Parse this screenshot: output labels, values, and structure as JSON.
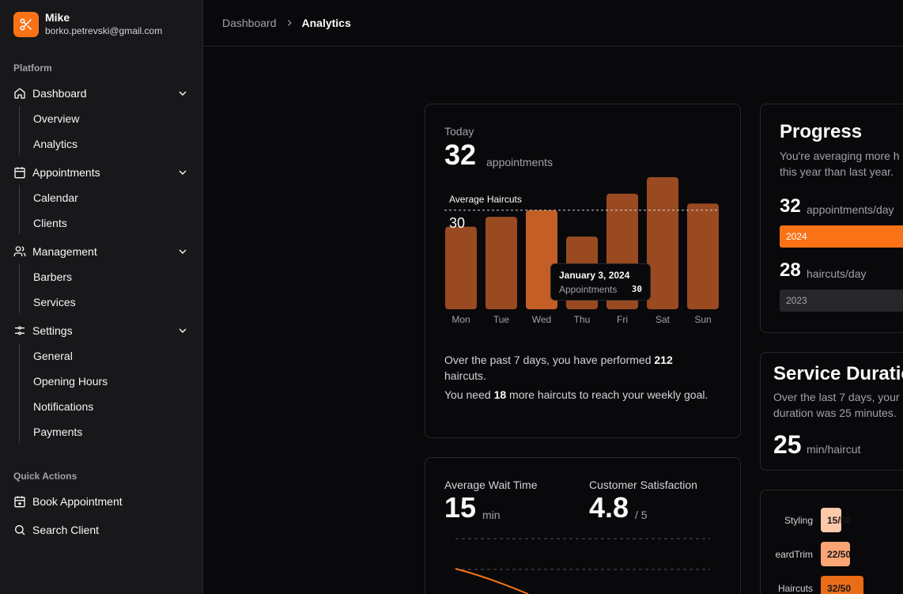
{
  "user": {
    "name": "Mike",
    "email": "borko.petrevski@gmail.com"
  },
  "sidebar": {
    "platform_label": "Platform",
    "dashboard": {
      "label": "Dashboard",
      "items": [
        "Overview",
        "Analytics"
      ]
    },
    "appointments": {
      "label": "Appointments",
      "items": [
        "Calendar",
        "Clients"
      ]
    },
    "management": {
      "label": "Management",
      "items": [
        "Barbers",
        "Services"
      ]
    },
    "settings": {
      "label": "Settings",
      "items": [
        "General",
        "Opening Hours",
        "Notifications",
        "Payments"
      ]
    },
    "quick_label": "Quick Actions",
    "quick": [
      "Book Appointment",
      "Search Client"
    ]
  },
  "breadcrumb": {
    "parent": "Dashboard",
    "current": "Analytics"
  },
  "today_card": {
    "label": "Today",
    "value": "32",
    "unit": "appointments",
    "reference_label": "Average Haircuts",
    "reference_value": "30",
    "summary_1_pre": "Over the past 7 days, you have performed ",
    "summary_1_num": "212",
    "summary_1_post": " haircuts.",
    "summary_2_pre": "You need ",
    "summary_2_num": "18",
    "summary_2_post": " more haircuts to reach your weekly goal.",
    "tooltip": {
      "date": "January 3, 2024",
      "label": "Appointments",
      "value": "30"
    }
  },
  "chart_data": {
    "type": "bar",
    "title": "Today",
    "categories": [
      "Mon",
      "Tue",
      "Wed",
      "Thu",
      "Fri",
      "Sat",
      "Sun"
    ],
    "values": [
      25,
      28,
      30,
      22,
      35,
      40,
      32
    ],
    "highlight_index": 2,
    "reference_line": {
      "label": "Average Haircuts",
      "value": 30
    },
    "ylim": [
      0,
      40
    ],
    "color": "#9a4a21",
    "highlight_color": "#c25e26"
  },
  "progress_card": {
    "title": "Progress",
    "desc_line1": "You're averaging more h",
    "desc_line2": "this year than last year.",
    "stat1_value": "32",
    "stat1_unit": "appointments/day",
    "bar1_label": "2024",
    "bar1_color": "#f97316",
    "stat2_value": "28",
    "stat2_unit": "haircuts/day",
    "bar2_label": "2023",
    "bar2_color": "#27272a"
  },
  "duration_card": {
    "title": "Service Duratio",
    "desc_line1": "Over the last 7 days, your",
    "desc_line2": "duration was 25 minutes.",
    "value": "25",
    "unit": "min/haircut"
  },
  "wait_card": {
    "wait_label": "Average Wait Time",
    "wait_value": "15",
    "wait_unit": "min",
    "sat_label": "Customer Satisfaction",
    "sat_value": "4.8",
    "sat_unit": "/ 5"
  },
  "services_chart": {
    "rows": [
      {
        "name": "Styling",
        "label": "15/50",
        "value": 15,
        "max": 50,
        "color": "#fdc9a9"
      },
      {
        "name": "eardTrim",
        "label": "22/50",
        "value": 22,
        "max": 50,
        "color": "#fba574"
      },
      {
        "name": "Haircuts",
        "label": "32/50",
        "value": 32,
        "max": 50,
        "color": "#ea6c17"
      }
    ]
  }
}
